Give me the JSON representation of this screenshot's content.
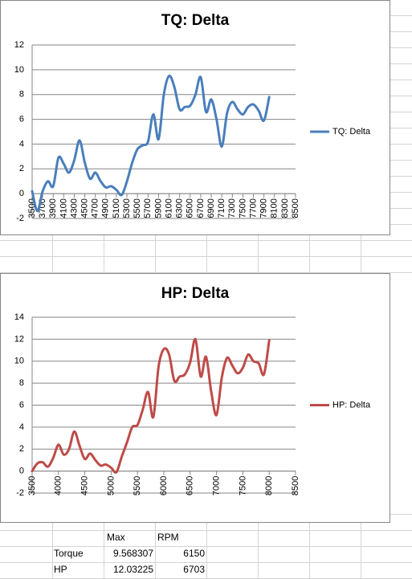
{
  "chart_data": [
    {
      "type": "line",
      "title": "TQ: Delta",
      "categories": [
        "3500",
        null,
        "3700",
        null,
        "3900",
        null,
        "4100",
        null,
        "4300",
        null,
        "4500",
        null,
        "4700",
        null,
        "4900",
        null,
        "5100",
        null,
        "5300",
        null,
        "5500",
        null,
        "5700",
        null,
        "5900",
        null,
        "6100",
        null,
        "6300",
        null,
        "6500",
        null,
        "6700",
        null,
        "6900",
        null,
        "7100",
        null,
        "7300",
        null,
        "7500",
        null,
        "7700",
        null,
        "7900",
        null,
        "8100",
        null,
        "8300",
        null,
        "8500"
      ],
      "series": [
        {
          "name": "TQ: Delta",
          "color": "#4a7ebb",
          "values": [
            0.2,
            -1.4,
            0.2,
            1.0,
            0.6,
            2.9,
            2.4,
            1.7,
            2.7,
            4.3,
            2.5,
            1.2,
            1.7,
            1.0,
            0.5,
            0.6,
            0.3,
            -0.1,
            1.0,
            2.5,
            3.6,
            3.9,
            4.2,
            6.4,
            4.4,
            8.0,
            9.5,
            8.6,
            6.8,
            7.0,
            7.1,
            8.0,
            9.4,
            6.6,
            7.6,
            6.0,
            3.8,
            6.5,
            7.4,
            6.8,
            6.4,
            7.0,
            7.2,
            6.7,
            5.9,
            7.8,
            null,
            null,
            null,
            null,
            null
          ]
        }
      ],
      "ylim": [
        -2,
        12
      ],
      "yticks": [
        -2,
        0,
        2,
        4,
        6,
        8,
        10,
        12
      ],
      "grid": true,
      "legend": "right"
    },
    {
      "type": "line",
      "title": "HP: Delta",
      "x": [
        3500,
        3600,
        3700,
        3800,
        3900,
        4000,
        4100,
        4200,
        4300,
        4400,
        4500,
        4600,
        4700,
        4800,
        4900,
        5000,
        5100,
        5200,
        5300,
        5400,
        5500,
        5600,
        5700,
        5800,
        5900,
        6000,
        6100,
        6200,
        6300,
        6400,
        6500,
        6600,
        6700,
        6800,
        6900,
        7000,
        7100,
        7200,
        7300,
        7400,
        7500,
        7600,
        7700,
        7800,
        7900,
        8000
      ],
      "series": [
        {
          "name": "HP: Delta",
          "color": "#be4b48",
          "values": [
            0,
            0.7,
            0.8,
            0.4,
            1.2,
            2.4,
            1.5,
            2.0,
            3.6,
            2.3,
            1.1,
            1.6,
            1.0,
            0.5,
            0.6,
            0.3,
            -0.1,
            1.3,
            2.6,
            4.0,
            4.2,
            5.6,
            7.2,
            4.9,
            9.5,
            11.1,
            10.6,
            8.2,
            8.6,
            8.8,
            9.9,
            12.0,
            8.6,
            10.4,
            7.2,
            5.1,
            8.5,
            10.3,
            9.6,
            8.9,
            9.4,
            10.6,
            10.0,
            9.8,
            8.8,
            11.9
          ]
        }
      ],
      "xlim": [
        3500,
        8500
      ],
      "xticks": [
        3500,
        4000,
        4500,
        5000,
        5500,
        6000,
        6500,
        7000,
        7500,
        8000,
        8500
      ],
      "ylim": [
        -2,
        14
      ],
      "yticks": [
        -2,
        0,
        2,
        4,
        6,
        8,
        10,
        12,
        14
      ],
      "grid": true,
      "legend": "right"
    }
  ],
  "table": {
    "header": [
      "Max",
      "RPM"
    ],
    "rows": [
      [
        "Torque",
        9.568307,
        6150
      ],
      [
        "HP",
        12.03225,
        6703
      ]
    ]
  }
}
